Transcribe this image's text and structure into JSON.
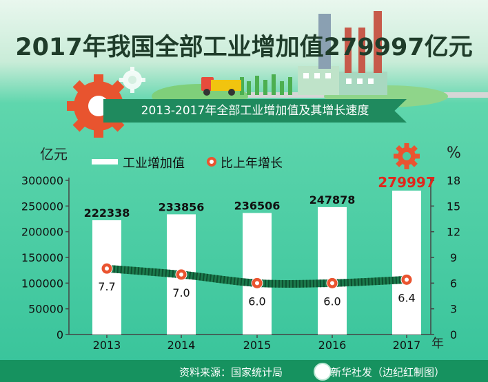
{
  "title": "2017年我国全部工业增加值279997亿元",
  "subtitle": "2013-2017年全部工业增加值及其增长速度",
  "footer": {
    "source": "资料来源：国家统计局",
    "credit": "新华社发（边纪红制图）"
  },
  "chart_data": {
    "type": "bar",
    "categories": [
      "2013",
      "2014",
      "2015",
      "2016",
      "2017"
    ],
    "x_unit": "年",
    "series": [
      {
        "name": "工业增加值",
        "type": "bar",
        "axis": "left",
        "values": [
          222338,
          233856,
          236506,
          247878,
          279997
        ]
      },
      {
        "name": "比上年增长",
        "type": "line",
        "axis": "right",
        "values": [
          7.7,
          7.0,
          6.0,
          6.0,
          6.4
        ],
        "labels": [
          "7.7",
          "7.0",
          "6.0",
          "6.0",
          "6.4"
        ]
      }
    ],
    "y_left": {
      "unit": "亿元",
      "min": 0,
      "max": 300000,
      "ticks": [
        0,
        50000,
        100000,
        150000,
        200000,
        250000,
        300000
      ]
    },
    "y_right": {
      "unit": "%",
      "min": 0,
      "max": 18,
      "ticks": [
        0,
        3,
        6,
        9,
        12,
        15,
        18
      ]
    },
    "legend_position": "top-left",
    "grid": false,
    "colors": {
      "bar": "#ffffff",
      "line": "#1b7a4c",
      "marker": "#ea5430",
      "highlight": "#e1261c"
    }
  }
}
